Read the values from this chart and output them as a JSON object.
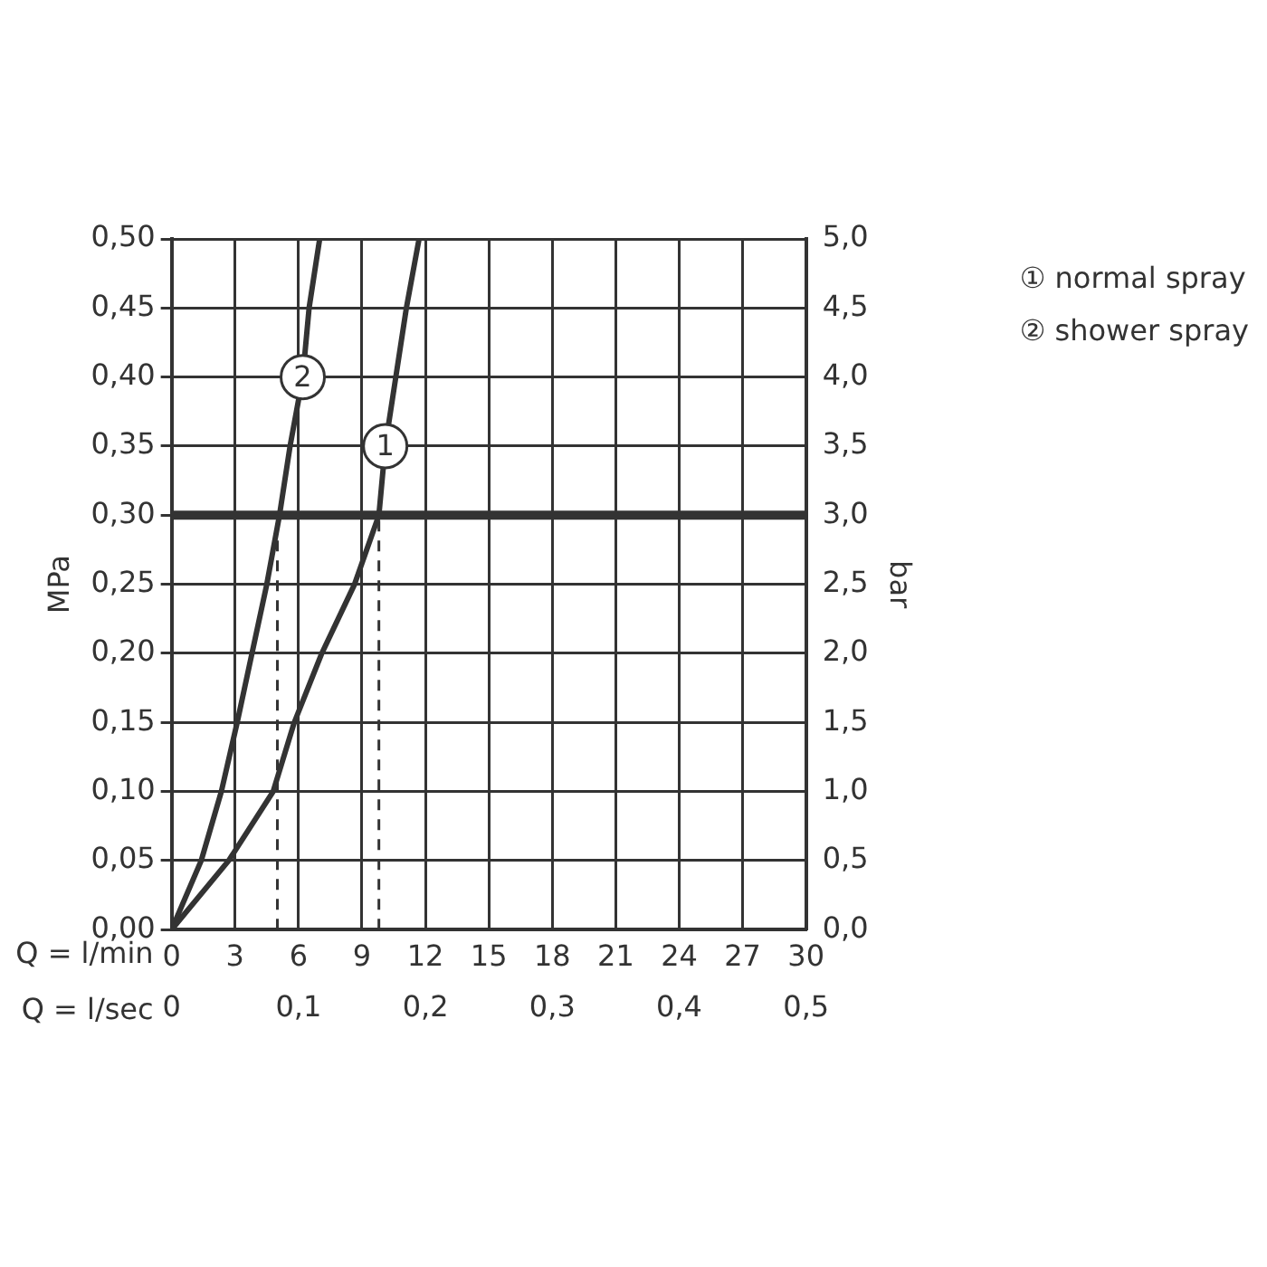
{
  "chart_data": {
    "type": "line",
    "xlabel": "Q = l/min",
    "x2label": "Q = l/sec",
    "ylabel": "MPa",
    "y2label": "bar",
    "xlim": [
      0,
      30
    ],
    "xticks": [
      0,
      3,
      6,
      9,
      12,
      15,
      18,
      21,
      24,
      27,
      30
    ],
    "x2lim": [
      0,
      0.5
    ],
    "x2ticks": [
      0,
      {
        "value": 0.1,
        "label": "0,1"
      },
      {
        "value": 0.2,
        "label": "0,2"
      },
      {
        "value": 0.3,
        "label": "0,3"
      },
      {
        "value": 0.4,
        "label": "0,4"
      },
      {
        "value": 0.5,
        "label": "0,5"
      }
    ],
    "ylim": [
      0,
      0.5
    ],
    "yticks": [
      {
        "value": 0,
        "label": "0,00"
      },
      {
        "value": 0.05,
        "label": "0,05"
      },
      {
        "value": 0.1,
        "label": "0,10"
      },
      {
        "value": 0.15,
        "label": "0,15"
      },
      {
        "value": 0.2,
        "label": "0,20"
      },
      {
        "value": 0.25,
        "label": "0,25"
      },
      {
        "value": 0.3,
        "label": "0,30"
      },
      {
        "value": 0.35,
        "label": "0,35"
      },
      {
        "value": 0.4,
        "label": "0,40"
      },
      {
        "value": 0.45,
        "label": "0,45"
      },
      {
        "value": 0.5,
        "label": "0,50"
      }
    ],
    "y2lim": [
      0,
      5
    ],
    "y2ticks": [
      {
        "value": 0,
        "label": "0,0"
      },
      {
        "value": 0.5,
        "label": "0,5"
      },
      {
        "value": 1,
        "label": "1,0"
      },
      {
        "value": 1.5,
        "label": "1,5"
      },
      {
        "value": 2,
        "label": "2,0"
      },
      {
        "value": 2.5,
        "label": "2,5"
      },
      {
        "value": 3,
        "label": "3,0"
      },
      {
        "value": 3.5,
        "label": "3,5"
      },
      {
        "value": 4,
        "label": "4,0"
      },
      {
        "value": 4.5,
        "label": "4,5"
      },
      {
        "value": 5,
        "label": "5,0"
      }
    ],
    "series": [
      {
        "color": "#333333",
        "x": [
          0,
          2.7,
          4.8,
          5.8,
          7.1,
          8.65,
          9.8,
          10.1,
          10.6,
          11.1,
          11.7
        ],
        "values": [
          0,
          0.05,
          0.1,
          0.15,
          0.2,
          0.25,
          0.3,
          0.35,
          0.4,
          0.45,
          0.5
        ]
      },
      {
        "color": "#333333",
        "x": [
          0,
          1.4,
          2.35,
          3.1,
          3.8,
          4.5,
          5.1,
          5.6,
          6.2,
          6.5,
          7.0
        ],
        "values": [
          0,
          0.05,
          0.1,
          0.15,
          0.2,
          0.25,
          0.3,
          0.35,
          0.4,
          0.45,
          0.5
        ]
      }
    ],
    "annotations": [
      {
        "text": "1",
        "x": 10.1,
        "y": 0.35
      },
      {
        "text": "2",
        "x": 6.2,
        "y": 0.4
      },
      "① normal spray",
      "② shower spray"
    ],
    "ref_lines": [
      {
        "axis": "y",
        "value": 0.3,
        "color": "#333333",
        "line_style": "solid"
      },
      {
        "axis": "x",
        "value": 5,
        "color": "#333333",
        "line_style": "dashed"
      },
      {
        "axis": "x",
        "value": 9.8,
        "color": "#333333",
        "line_style": "dashed"
      }
    ],
    "grid": true,
    "marker": "none",
    "line_style": "solid"
  }
}
